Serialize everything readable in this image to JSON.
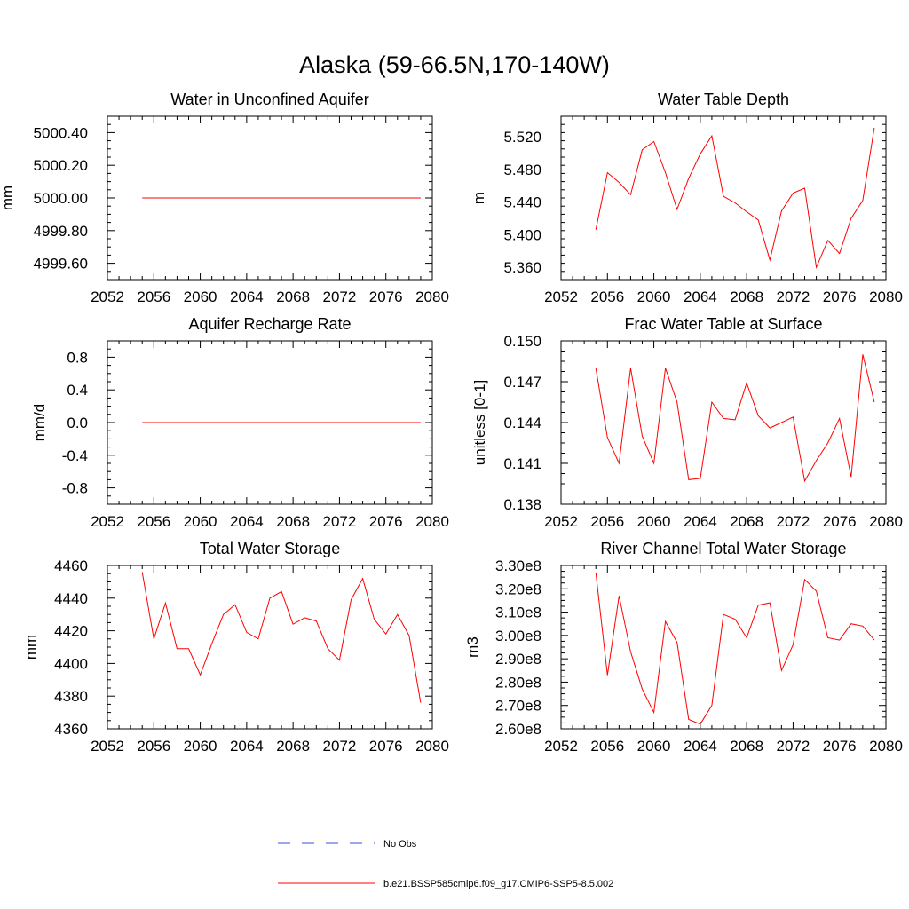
{
  "figure_title": "Alaska (59-66.5N,170-140W)",
  "colors": {
    "model": "#ff0000",
    "obs": "#3b4fd8",
    "axis": "#000000"
  },
  "legend": {
    "obs_label": "No Obs",
    "model_label": "b.e21.BSSP585cmip6.f09_g17.CMIP6-SSP5-8.5.002"
  },
  "chart_data": [
    {
      "type": "line",
      "title": "Water in Unconfined Aquifer",
      "ylabel": "mm",
      "xlim": [
        2052,
        2080
      ],
      "ylim": [
        4999.5,
        5000.5
      ],
      "xticks": [
        2052,
        2056,
        2060,
        2064,
        2068,
        2072,
        2076,
        2080
      ],
      "yticks": [
        4999.6,
        4999.8,
        5000.0,
        5000.2,
        5000.4
      ],
      "ytick_labels": [
        "4999.60",
        "4999.80",
        "5000.00",
        "5000.20",
        "5000.40"
      ],
      "series": [
        {
          "name": "b.e21.BSSP585cmip6.f09_g17.CMIP6-SSP5-8.5.002",
          "x": [
            2055,
            2056,
            2057,
            2058,
            2059,
            2060,
            2061,
            2062,
            2063,
            2064,
            2065,
            2066,
            2067,
            2068,
            2069,
            2070,
            2071,
            2072,
            2073,
            2074,
            2075,
            2076,
            2077,
            2078,
            2079
          ],
          "values": [
            5000.0,
            5000.0,
            5000.0,
            5000.0,
            5000.0,
            5000.0,
            5000.0,
            5000.0,
            5000.0,
            5000.0,
            5000.0,
            5000.0,
            5000.0,
            5000.0,
            5000.0,
            5000.0,
            5000.0,
            5000.0,
            5000.0,
            5000.0,
            5000.0,
            5000.0,
            5000.0,
            5000.0,
            5000.0
          ]
        }
      ]
    },
    {
      "type": "line",
      "title": "Water Table Depth",
      "ylabel": "m",
      "xlim": [
        2052,
        2080
      ],
      "ylim": [
        5.345,
        5.545
      ],
      "xticks": [
        2052,
        2056,
        2060,
        2064,
        2068,
        2072,
        2076,
        2080
      ],
      "yticks": [
        5.36,
        5.4,
        5.44,
        5.48,
        5.52
      ],
      "ytick_labels": [
        "5.360",
        "5.400",
        "5.440",
        "5.480",
        "5.520"
      ],
      "series": [
        {
          "name": "b.e21.BSSP585cmip6.f09_g17.CMIP6-SSP5-8.5.002",
          "x": [
            2055,
            2056,
            2057,
            2058,
            2059,
            2060,
            2061,
            2062,
            2063,
            2064,
            2065,
            2066,
            2067,
            2068,
            2069,
            2070,
            2071,
            2072,
            2073,
            2074,
            2075,
            2076,
            2077,
            2078,
            2079
          ],
          "values": [
            5.406,
            5.476,
            5.464,
            5.449,
            5.504,
            5.514,
            5.476,
            5.431,
            5.469,
            5.499,
            5.521,
            5.447,
            5.439,
            5.428,
            5.418,
            5.369,
            5.429,
            5.451,
            5.457,
            5.36,
            5.393,
            5.377,
            5.42,
            5.442,
            5.531
          ]
        }
      ]
    },
    {
      "type": "line",
      "title": "Aquifer Recharge Rate",
      "ylabel": "mm/d",
      "xlim": [
        2052,
        2080
      ],
      "ylim": [
        -1.0,
        1.0
      ],
      "xticks": [
        2052,
        2056,
        2060,
        2064,
        2068,
        2072,
        2076,
        2080
      ],
      "yticks": [
        -0.8,
        -0.4,
        0.0,
        0.4,
        0.8
      ],
      "ytick_labels": [
        "-0.8",
        "-0.4",
        "0.0",
        "0.4",
        "0.8"
      ],
      "series": [
        {
          "name": "b.e21.BSSP585cmip6.f09_g17.CMIP6-SSP5-8.5.002",
          "x": [
            2055,
            2056,
            2057,
            2058,
            2059,
            2060,
            2061,
            2062,
            2063,
            2064,
            2065,
            2066,
            2067,
            2068,
            2069,
            2070,
            2071,
            2072,
            2073,
            2074,
            2075,
            2076,
            2077,
            2078,
            2079
          ],
          "values": [
            0,
            0,
            0,
            0,
            0,
            0,
            0,
            0,
            0,
            0,
            0,
            0,
            0,
            0,
            0,
            0,
            0,
            0,
            0,
            0,
            0,
            0,
            0,
            0,
            0
          ]
        }
      ]
    },
    {
      "type": "line",
      "title": "Frac Water Table at Surface",
      "ylabel": "unitless [0-1]",
      "xlim": [
        2052,
        2080
      ],
      "ylim": [
        0.138,
        0.15
      ],
      "xticks": [
        2052,
        2056,
        2060,
        2064,
        2068,
        2072,
        2076,
        2080
      ],
      "yticks": [
        0.138,
        0.141,
        0.144,
        0.147,
        0.15
      ],
      "ytick_labels": [
        "0.138",
        "0.141",
        "0.144",
        "0.147",
        "0.150"
      ],
      "series": [
        {
          "name": "b.e21.BSSP585cmip6.f09_g17.CMIP6-SSP5-8.5.002",
          "x": [
            2055,
            2056,
            2057,
            2058,
            2059,
            2060,
            2061,
            2062,
            2063,
            2064,
            2065,
            2066,
            2067,
            2068,
            2069,
            2070,
            2071,
            2072,
            2073,
            2074,
            2075,
            2076,
            2077,
            2078,
            2079
          ],
          "values": [
            0.148,
            0.1429,
            0.141,
            0.148,
            0.143,
            0.141,
            0.148,
            0.1455,
            0.1398,
            0.1399,
            0.1455,
            0.1443,
            0.1442,
            0.1469,
            0.1445,
            0.1436,
            0.144,
            0.1444,
            0.1397,
            0.1412,
            0.1425,
            0.1443,
            0.14,
            0.149,
            0.1455
          ]
        }
      ]
    },
    {
      "type": "line",
      "title": "Total Water Storage",
      "ylabel": "mm",
      "xlim": [
        2052,
        2080
      ],
      "ylim": [
        4360,
        4460
      ],
      "xticks": [
        2052,
        2056,
        2060,
        2064,
        2068,
        2072,
        2076,
        2080
      ],
      "yticks": [
        4360,
        4380,
        4400,
        4420,
        4440,
        4460
      ],
      "ytick_labels": [
        "4360",
        "4380",
        "4400",
        "4420",
        "4440",
        "4460"
      ],
      "series": [
        {
          "name": "b.e21.BSSP585cmip6.f09_g17.CMIP6-SSP5-8.5.002",
          "x": [
            2055,
            2056,
            2057,
            2058,
            2059,
            2060,
            2061,
            2062,
            2063,
            2064,
            2065,
            2066,
            2067,
            2068,
            2069,
            2070,
            2071,
            2072,
            2073,
            2074,
            2075,
            2076,
            2077,
            2078,
            2079
          ],
          "values": [
            4456,
            4415,
            4437,
            4409,
            4409,
            4393,
            4412,
            4430,
            4436,
            4419,
            4415,
            4440,
            4444,
            4424,
            4428,
            4426,
            4409,
            4402,
            4439,
            4452,
            4427,
            4418,
            4430,
            4417,
            4376
          ]
        }
      ]
    },
    {
      "type": "line",
      "title": "River Channel Total Water Storage",
      "ylabel": "m3",
      "xlim": [
        2052,
        2080
      ],
      "ylim": [
        260000000.0,
        330000000.0
      ],
      "xticks": [
        2052,
        2056,
        2060,
        2064,
        2068,
        2072,
        2076,
        2080
      ],
      "yticks": [
        260000000.0,
        270000000.0,
        280000000.0,
        290000000.0,
        300000000.0,
        310000000.0,
        320000000.0,
        330000000.0
      ],
      "ytick_labels": [
        "2.60e8",
        "2.70e8",
        "2.80e8",
        "2.90e8",
        "3.00e8",
        "3.10e8",
        "3.20e8",
        "3.30e8"
      ],
      "series": [
        {
          "name": "b.e21.BSSP585cmip6.f09_g17.CMIP6-SSP5-8.5.002",
          "x": [
            2055,
            2056,
            2057,
            2058,
            2059,
            2060,
            2061,
            2062,
            2063,
            2064,
            2065,
            2066,
            2067,
            2068,
            2069,
            2070,
            2071,
            2072,
            2073,
            2074,
            2075,
            2076,
            2077,
            2078,
            2079
          ],
          "values": [
            327000000.0,
            283000000.0,
            317000000.0,
            293000000.0,
            277000000.0,
            267000000.0,
            306000000.0,
            297000000.0,
            264000000.0,
            262000000.0,
            270000000.0,
            309000000.0,
            307000000.0,
            299000000.0,
            313000000.0,
            314000000.0,
            285000000.0,
            296000000.0,
            324000000.0,
            319000000.0,
            299000000.0,
            298000000.0,
            305000000.0,
            304000000.0,
            298000000.0
          ]
        }
      ]
    }
  ]
}
